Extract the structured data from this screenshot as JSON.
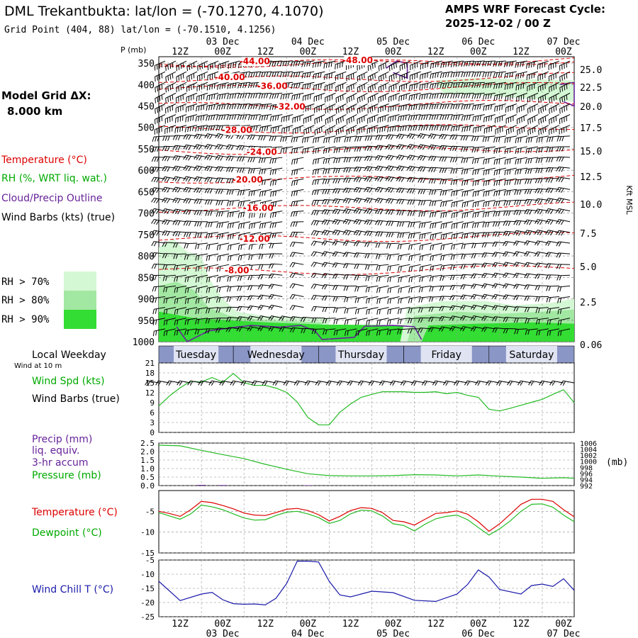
{
  "header": {
    "station_title": "DML Trekantbukta:  lat/lon = (-70.1270, 4.1070)",
    "grid_point": "Grid Point (404, 88) lat/lon = (-70.1510, 4.1256)",
    "cycle_label": "AMPS WRF Forecast Cycle:",
    "cycle_value": "2025-12-02 / 00  Z"
  },
  "sidebar": {
    "model_grid_label": "Model Grid ΔX:",
    "model_grid_value": "8.000 km",
    "legend_temperature": "Temperature (°C)",
    "legend_rh": "RH (%, WRT liq. wat.)",
    "legend_cloud": "Cloud/Precip Outline",
    "legend_wind": "Wind Barbs (kts) (true)",
    "rh_keys": [
      {
        "label": "RH > 70%",
        "color": "#d4f7d4"
      },
      {
        "label": "RH > 80%",
        "color": "#a2e8a2"
      },
      {
        "label": "RH > 90%",
        "color": "#33dd33"
      }
    ],
    "local_weekday_label": "Local Weekday",
    "wind_10m_label": "Wind at 10 m",
    "wind_spd_label": "Wind Spd (kts)",
    "wind_barbs_label": "Wind Barbs (true)",
    "precip_label_1": "Precip (mm)",
    "precip_label_2": "liq. equiv.",
    "precip_label_3": "3-hr accum",
    "pressure_label": "Pressure (mb)",
    "temperature_label": "Temperature (°C)",
    "dewpoint_label": "Dewpoint (°C)",
    "windchill_label": "Wind Chill T (°C)"
  },
  "colors": {
    "temperature": "#dd0000",
    "rh": "#00bb00",
    "cloud": "#662299",
    "wind": "#000000",
    "weekday_band": "#5a6aa6",
    "pressure": "#22bb22",
    "windchill": "#1a1aaa"
  },
  "chart_data": [
    {
      "type": "time-height",
      "name": "vertical-cross-section",
      "pressure_axis_label": "P (mb)",
      "pressure_ticks": [
        350,
        400,
        450,
        500,
        550,
        600,
        650,
        700,
        750,
        800,
        850,
        900,
        950,
        1000
      ],
      "height_axis_label": "Kft MSL",
      "height_ticks": [
        "25.0",
        "22.5",
        "20.0",
        "17.5",
        "15.0",
        "12.5",
        "10.0",
        "7.5",
        "5.0",
        "2.5",
        "0.06"
      ],
      "time_ticks": [
        "12Z",
        "00Z",
        "12Z",
        "00Z",
        "12Z",
        "00Z",
        "12Z",
        "00Z",
        "12Z",
        "00Z"
      ],
      "date_labels": [
        "03 Dec",
        "04 Dec",
        "05 Dec",
        "06 Dec",
        "07 Dec"
      ],
      "weekdays": [
        "Tuesday",
        "Wednesday",
        "Thursday",
        "Friday",
        "Saturday"
      ],
      "isotherm_labels": [
        {
          "text": "-44.00",
          "hour": 27,
          "p": 352
        },
        {
          "text": "-48.00",
          "hour": 56,
          "p": 350
        },
        {
          "text": "-40.00",
          "hour": 20,
          "p": 390
        },
        {
          "text": "-36.00",
          "hour": 32,
          "p": 410
        },
        {
          "text": "-32.00",
          "hour": 37,
          "p": 458
        },
        {
          "text": "-28.00",
          "hour": 22,
          "p": 513
        },
        {
          "text": "-24.00",
          "hour": 29,
          "p": 564
        },
        {
          "text": "-20.00",
          "hour": 25,
          "p": 629
        },
        {
          "text": "-16.00",
          "hour": 28,
          "p": 695
        },
        {
          "text": "-12.00",
          "hour": 27,
          "p": 767
        },
        {
          "text": "-8.00",
          "hour": 22,
          "p": 840
        }
      ]
    },
    {
      "type": "line",
      "name": "wind-speed",
      "ylim": [
        0,
        21
      ],
      "yticks": [
        0,
        3,
        6,
        9,
        12,
        15,
        18,
        21
      ],
      "x_hours": [
        0,
        3,
        6,
        9,
        12,
        15,
        18,
        21,
        24,
        27,
        30,
        33,
        36,
        39,
        42,
        45,
        48,
        51,
        54,
        57,
        60,
        63,
        66,
        69,
        72,
        75,
        78,
        81,
        84,
        87,
        90,
        93,
        96,
        99,
        102,
        105,
        108,
        111,
        114,
        117
      ],
      "series": [
        {
          "name": "Wind Spd (kts)",
          "values": [
            8,
            11,
            13.5,
            15.5,
            15.2,
            16.6,
            15.2,
            17.8,
            15.0,
            14.2,
            14.2,
            13.4,
            12.1,
            9.2,
            4.5,
            2.3,
            2.3,
            6.1,
            8.6,
            10.6,
            11.5,
            12.3,
            12.3,
            12.3,
            12.1,
            12.1,
            12.3,
            11.7,
            12.1,
            11.2,
            10.6,
            7.0,
            6.5,
            7.3,
            8.2,
            9.1,
            10.0,
            11.5,
            12.9,
            9.0
          ]
        }
      ]
    },
    {
      "type": "line",
      "name": "precip-pressure",
      "ylim": [
        0,
        2.5
      ],
      "yticks": [
        0.0,
        0.5,
        1.0,
        1.5,
        2.0,
        2.5
      ],
      "y2_ticks": [
        992,
        994,
        996,
        998,
        1000,
        1002,
        1004,
        1006
      ],
      "y2_label": "(mb)",
      "x_hours": [
        0,
        6,
        12,
        18,
        24,
        30,
        36,
        42,
        48,
        54,
        60,
        66,
        72,
        78,
        84,
        90,
        96,
        102,
        108,
        114,
        117
      ],
      "series": [
        {
          "name": "Pressure (mb)",
          "values": [
            1005.3,
            1005.1,
            1003.6,
            1002.2,
            1000.9,
            999.0,
            997.4,
            995.9,
            995.3,
            995.2,
            995.2,
            995.3,
            995.6,
            995.5,
            995.2,
            995.5,
            995.1,
            994.8,
            994.4,
            994.6,
            994.4
          ]
        },
        {
          "name": "Precip (mm)",
          "values": [
            0,
            0,
            0.04,
            0.03,
            0,
            0,
            0,
            0.02,
            0,
            0,
            0,
            0,
            0,
            0,
            0,
            0,
            0,
            0,
            0,
            0,
            0
          ]
        }
      ]
    },
    {
      "type": "line",
      "name": "temperature-dewpoint",
      "ylim": [
        -15,
        0
      ],
      "yticks": [
        -15,
        -10,
        -5
      ],
      "x_hours": [
        0,
        3,
        6,
        9,
        12,
        15,
        18,
        21,
        24,
        27,
        30,
        33,
        36,
        39,
        42,
        45,
        48,
        51,
        54,
        57,
        60,
        63,
        66,
        69,
        72,
        75,
        78,
        81,
        84,
        87,
        90,
        93,
        96,
        99,
        102,
        105,
        108,
        111,
        114,
        117
      ],
      "series": [
        {
          "name": "Temperature",
          "values": [
            -5.0,
            -5.5,
            -6.2,
            -4.6,
            -2.6,
            -2.9,
            -3.6,
            -4.4,
            -5.4,
            -5.9,
            -6.0,
            -5.3,
            -4.5,
            -4.3,
            -4.8,
            -5.8,
            -7.3,
            -6.2,
            -4.8,
            -4.1,
            -4.3,
            -5.3,
            -7.2,
            -7.5,
            -8.3,
            -6.9,
            -5.5,
            -5.3,
            -4.9,
            -5.7,
            -7.5,
            -9.8,
            -8.0,
            -5.7,
            -3.3,
            -2.1,
            -2.1,
            -2.6,
            -4.6,
            -6.3
          ]
        },
        {
          "name": "Dewpoint",
          "values": [
            -5.3,
            -6.1,
            -6.9,
            -5.6,
            -3.5,
            -3.9,
            -4.6,
            -5.6,
            -6.6,
            -7.1,
            -7.0,
            -6.0,
            -5.2,
            -5.0,
            -5.6,
            -6.5,
            -7.9,
            -7.2,
            -5.6,
            -4.7,
            -4.9,
            -6.1,
            -8.0,
            -8.4,
            -9.7,
            -8.1,
            -6.8,
            -6.2,
            -5.9,
            -7.0,
            -8.9,
            -10.7,
            -9.2,
            -7.3,
            -5.0,
            -3.3,
            -3.2,
            -4.0,
            -5.9,
            -7.5
          ]
        }
      ]
    },
    {
      "type": "line",
      "name": "wind-chill",
      "ylim": [
        -25,
        -5
      ],
      "yticks": [
        -25,
        -20,
        -15,
        -10,
        -5
      ],
      "x_hours": [
        0,
        6,
        12,
        15,
        18,
        21,
        24,
        27,
        30,
        33,
        36,
        39,
        42,
        45,
        48,
        51,
        54,
        57,
        60,
        66,
        72,
        78,
        84,
        87,
        90,
        93,
        96,
        102,
        105,
        108,
        111,
        114,
        117
      ],
      "series": [
        {
          "name": "Wind Chill T",
          "values": [
            -12.5,
            -19.3,
            -17.0,
            -16.4,
            -19.0,
            -20.4,
            -20.6,
            -20.5,
            -20.8,
            -18.5,
            -13.3,
            -5.4,
            -5.4,
            -5.7,
            -12.5,
            -17.3,
            -18.0,
            -17.0,
            -16.0,
            -16.5,
            -19.2,
            -19.6,
            -17.0,
            -13.6,
            -8.5,
            -11.0,
            -15.4,
            -17.0,
            -14.0,
            -13.5,
            -14.3,
            -11.6,
            -15.7
          ]
        }
      ]
    }
  ]
}
